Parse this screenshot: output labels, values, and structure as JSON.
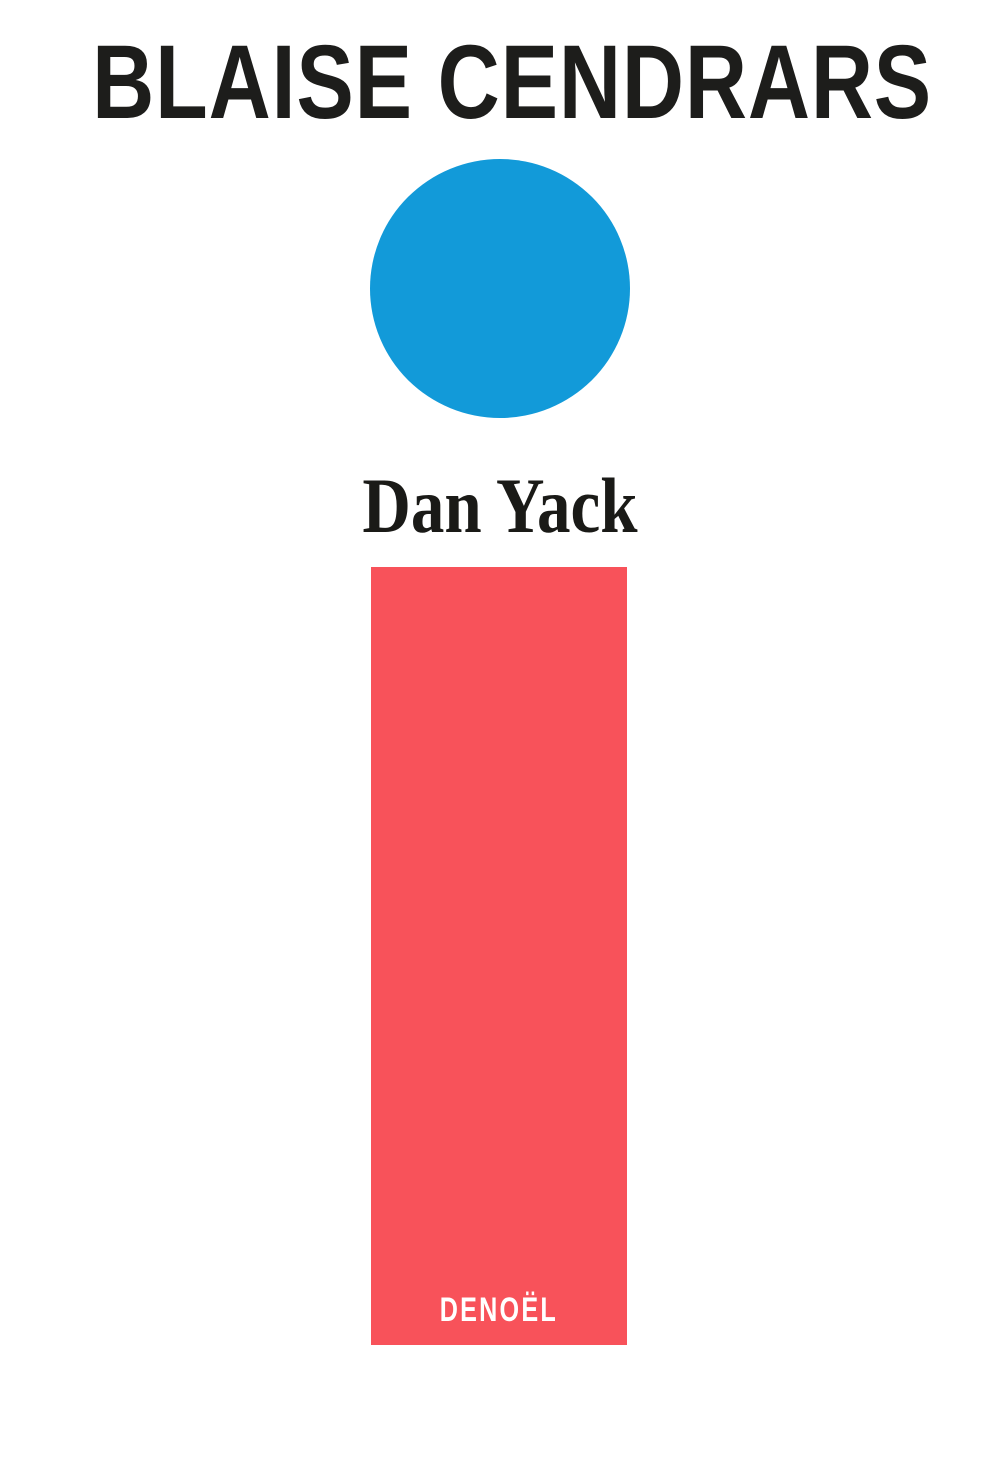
{
  "cover": {
    "author": "BLAISE CENDRARS",
    "title": "Dan Yack",
    "publisher": "DENOËL",
    "colors": {
      "background": "#ffffff",
      "ink_black": "#1d1d1b",
      "circle_blue": "#129ad9",
      "rectangle_red": "#f8525a",
      "publisher_white": "#ffffff"
    },
    "graphics": {
      "circle": "blue-circle",
      "rectangle": "red-vertical-rectangle"
    }
  }
}
